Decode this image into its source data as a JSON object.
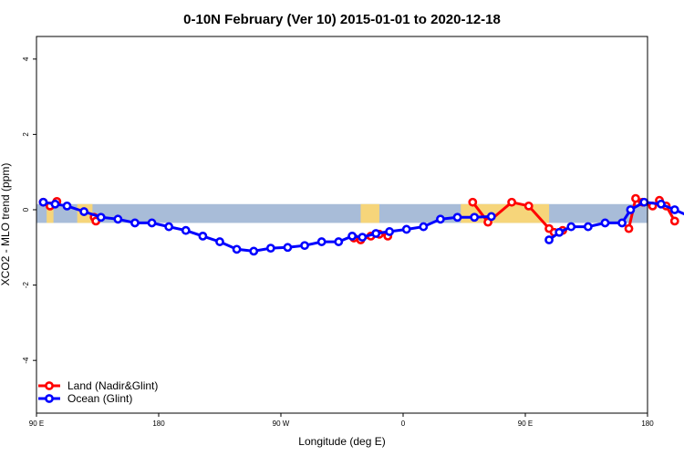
{
  "chart_data": {
    "type": "line",
    "title": "0-10N February (Ver 10)   2015-01-01 to 2020-12-18",
    "xlabel": "Longitude (deg E)",
    "ylabel": "XCO2 - MLO trend (ppm)",
    "xlim": [
      90,
      450
    ],
    "ylim": [
      -5.4,
      4.6
    ],
    "x_ticks": [
      {
        "value": 90,
        "label": "90 E"
      },
      {
        "value": 180,
        "label": "180"
      },
      {
        "value": 270,
        "label": "90 W"
      },
      {
        "value": 360,
        "label": "0"
      },
      {
        "value": 450,
        "label": "90 E"
      },
      {
        "value": 540,
        "label": "180"
      }
    ],
    "y_ticks": [
      {
        "value": -4,
        "label": "-4"
      },
      {
        "value": -2,
        "label": "-2"
      },
      {
        "value": 0,
        "label": "0"
      },
      {
        "value": 2,
        "label": "2"
      },
      {
        "value": 4,
        "label": "4"
      }
    ],
    "band_y": [
      -0.35,
      0.15
    ],
    "band_color": "#a8bcd8",
    "land_color": "#f6d57a",
    "land_x_ranges": [
      [
        96,
        100
      ],
      [
        114,
        123
      ],
      [
        281,
        292
      ],
      [
        340,
        392
      ],
      [
        455,
        472
      ],
      [
        476,
        486
      ],
      [
        510,
        515
      ]
    ],
    "series": [
      {
        "name": "Land (Nadir&Glint)",
        "color": "#ff0000",
        "segments": [
          {
            "x": [
              94,
              98,
              102
            ],
            "y": [
              0.2,
              0.1,
              0.22
            ]
          },
          {
            "x": [
              124,
              125
            ],
            "y": [
              -0.2,
              -0.3
            ]
          },
          {
            "x": [
              277,
              281,
              287,
              292,
              297
            ],
            "y": [
              -0.75,
              -0.8,
              -0.7,
              -0.65,
              -0.7
            ]
          },
          {
            "x": [
              347,
              356,
              370,
              380,
              392,
              395,
              400
            ],
            "y": [
              0.2,
              -0.33,
              0.2,
              0.1,
              -0.5,
              -0.6,
              -0.55
            ]
          },
          {
            "x": [
              439,
              443,
              447,
              453,
              457,
              461,
              466
            ],
            "y": [
              -0.5,
              0.3,
              0.2,
              0.1,
              0.25,
              0.1,
              -0.3
            ]
          }
        ]
      },
      {
        "name": "Ocean (Glint)",
        "color": "#0000ff",
        "segments": [
          {
            "x": [
              94,
              101,
              108,
              118,
              128,
              138,
              148,
              158,
              168,
              178,
              188,
              198,
              208,
              218,
              228,
              238,
              248,
              258,
              268,
              276,
              282,
              290,
              298,
              308,
              318,
              328,
              338,
              348,
              358
            ],
            "y": [
              0.2,
              0.15,
              0.1,
              -0.05,
              -0.2,
              -0.25,
              -0.35,
              -0.35,
              -0.45,
              -0.55,
              -0.7,
              -0.85,
              -1.05,
              -1.1,
              -1.02,
              -1.0,
              -0.95,
              -0.85,
              -0.85,
              -0.7,
              -0.73,
              -0.63,
              -0.58,
              -0.52,
              -0.45,
              -0.25,
              -0.2,
              -0.2,
              -0.18
            ]
          },
          {
            "x": [
              392,
              398,
              405,
              415,
              425,
              435,
              440,
              448,
              458,
              466,
              476,
              486,
              496,
              506,
              516,
              526,
              536,
              546
            ],
            "y": [
              -0.8,
              -0.6,
              -0.45,
              -0.45,
              -0.35,
              -0.35,
              0.0,
              0.2,
              0.15,
              0.0,
              -0.2,
              -0.25,
              -0.35,
              -0.37,
              -0.45,
              -0.5,
              -0.52,
              -0.58
            ]
          }
        ]
      }
    ],
    "legend": {
      "position": "bottom-left",
      "entries": [
        "Land (Nadir&Glint)",
        "Ocean (Glint)"
      ]
    }
  }
}
